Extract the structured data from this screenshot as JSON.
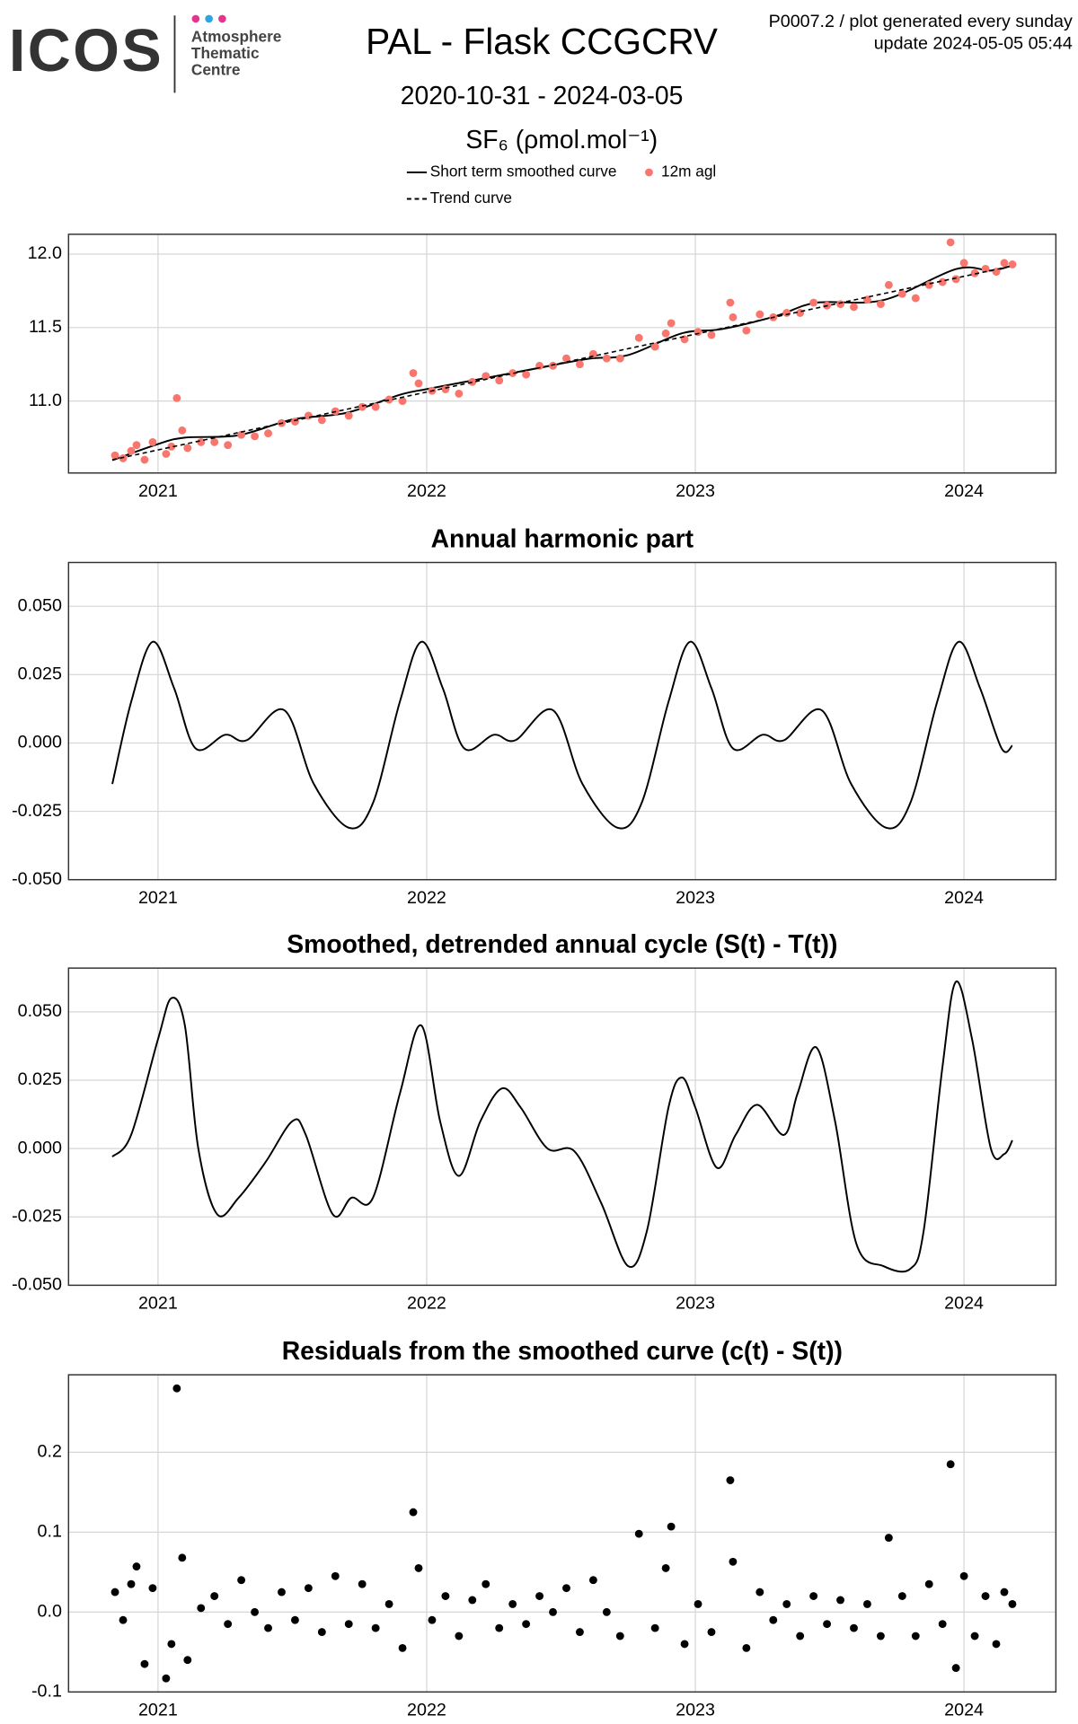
{
  "header": {
    "logo": "ICOS",
    "org": [
      "Atmosphere",
      "Thematic",
      "Centre"
    ],
    "title": "PAL - Flask CCGCRV",
    "date_range": "2020-10-31 - 2024-03-05",
    "unit": "SF₆ (ρmol.mol⁻¹)",
    "note": [
      "P0007.2 / plot generated every sunday",
      "update  2024-05-05 05:44"
    ]
  },
  "chart_data": [
    {
      "type": "line",
      "xlim": [
        2020.667,
        2024.342
      ],
      "xticks": [
        2021,
        2022,
        2023,
        2024
      ],
      "ylim": [
        10.51,
        12.135
      ],
      "yticks": [
        {
          "value": 11.0,
          "label": "11.0"
        },
        11.5,
        {
          "value": 12.0,
          "label": "12.0"
        }
      ],
      "grid": true,
      "series": [
        {
          "name": "Short term smoothed curve",
          "color": "#000000",
          "mark": "line",
          "x": [
            2020.83,
            2021.0,
            2021.1,
            2021.3,
            2021.5,
            2021.7,
            2021.9,
            2022.0,
            2022.2,
            2022.4,
            2022.6,
            2022.75,
            2022.95,
            2023.1,
            2023.3,
            2023.45,
            2023.7,
            2023.97,
            2024.1,
            2024.18
          ],
          "values": [
            10.597,
            10.707,
            10.751,
            10.767,
            10.874,
            10.919,
            11.042,
            11.081,
            11.15,
            11.219,
            11.287,
            11.313,
            11.461,
            11.49,
            11.578,
            11.669,
            11.687,
            11.898,
            11.888,
            11.923
          ]
        },
        {
          "name": "12m agl",
          "color": "#f8766d",
          "mark": "point",
          "x": [
            2020.84,
            2020.87,
            2020.9,
            2020.92,
            2020.95,
            2020.98,
            2021.03,
            2021.05,
            2021.07,
            2021.09,
            2021.11,
            2021.16,
            2021.21,
            2021.26,
            2021.31,
            2021.36,
            2021.41,
            2021.46,
            2021.51,
            2021.56,
            2021.61,
            2021.66,
            2021.71,
            2021.76,
            2021.81,
            2021.86,
            2021.91,
            2021.95,
            2021.97,
            2022.02,
            2022.07,
            2022.12,
            2022.17,
            2022.22,
            2022.27,
            2022.32,
            2022.37,
            2022.42,
            2022.47,
            2022.52,
            2022.57,
            2022.62,
            2022.67,
            2022.72,
            2022.79,
            2022.85,
            2022.89,
            2022.91,
            2022.96,
            2023.01,
            2023.06,
            2023.13,
            2023.14,
            2023.19,
            2023.24,
            2023.29,
            2023.34,
            2023.39,
            2023.44,
            2023.49,
            2023.54,
            2023.59,
            2023.64,
            2023.69,
            2023.72,
            2023.77,
            2023.82,
            2023.87,
            2023.92,
            2023.95,
            2023.97,
            2024.0,
            2024.04,
            2024.08,
            2024.12,
            2024.15,
            2024.18
          ],
          "values": [
            10.63,
            10.61,
            10.66,
            10.7,
            10.6,
            10.72,
            10.64,
            10.69,
            11.02,
            10.8,
            10.68,
            10.72,
            10.72,
            10.7,
            10.77,
            10.76,
            10.78,
            10.85,
            10.86,
            10.9,
            10.87,
            10.93,
            10.9,
            10.96,
            10.96,
            11.01,
            11.0,
            11.19,
            11.12,
            11.07,
            11.08,
            11.05,
            11.13,
            11.17,
            11.14,
            11.19,
            11.18,
            11.24,
            11.24,
            11.29,
            11.25,
            11.32,
            11.29,
            11.29,
            11.43,
            11.37,
            11.46,
            11.53,
            11.42,
            11.47,
            11.45,
            11.67,
            11.57,
            11.48,
            11.59,
            11.57,
            11.6,
            11.6,
            11.67,
            11.65,
            11.66,
            11.64,
            11.69,
            11.66,
            11.79,
            11.73,
            11.7,
            11.79,
            11.81,
            12.08,
            11.83,
            11.94,
            11.87,
            11.9,
            11.88,
            11.94,
            11.93
          ]
        },
        {
          "name": "Trend curve",
          "color": "#000000",
          "mark": "dashed",
          "x": [
            2020.83,
            2022.0,
            2023.0,
            2024.18
          ],
          "values": [
            10.6,
            11.061,
            11.455,
            11.92
          ]
        }
      ]
    },
    {
      "type": "line",
      "title": "Annual harmonic part",
      "xlim": [
        2020.667,
        2024.342
      ],
      "xticks": [
        2021,
        2022,
        2023,
        2024
      ],
      "ylim": [
        -0.05,
        0.066
      ],
      "yticks": [
        {
          "value": -0.05,
          "label": "-0.050"
        },
        {
          "value": -0.025,
          "label": "-0.025"
        },
        {
          "value": 0,
          "label": "0.000"
        },
        {
          "value": 0.025,
          "label": "0.025"
        },
        {
          "value": 0.05,
          "label": "0.050"
        }
      ],
      "grid": true,
      "series": [
        {
          "color": "#000000",
          "mark": "line",
          "x": [
            2020.83,
            2020.9,
            2020.98,
            2021.06,
            2021.14,
            2021.25,
            2021.33,
            2021.47,
            2021.58,
            2021.71,
            2021.8,
            2021.9,
            2021.98,
            2022.06,
            2022.14,
            2022.25,
            2022.33,
            2022.47,
            2022.58,
            2022.71,
            2022.8,
            2022.9,
            2022.98,
            2023.06,
            2023.14,
            2023.25,
            2023.33,
            2023.47,
            2023.58,
            2023.71,
            2023.8,
            2023.9,
            2023.98,
            2024.06,
            2024.14,
            2024.18
          ],
          "values": [
            -0.015,
            0.015,
            0.037,
            0.02,
            -0.002,
            0.003,
            0.001,
            0.012,
            -0.015,
            -0.031,
            -0.022,
            0.015,
            0.037,
            0.02,
            -0.002,
            0.003,
            0.001,
            0.012,
            -0.015,
            -0.031,
            -0.022,
            0.015,
            0.037,
            0.02,
            -0.002,
            0.003,
            0.001,
            0.012,
            -0.015,
            -0.031,
            -0.022,
            0.015,
            0.037,
            0.02,
            -0.002,
            -0.001
          ]
        }
      ]
    },
    {
      "type": "line",
      "title": "Smoothed, detrended annual cycle (S(t) - T(t))",
      "xlim": [
        2020.667,
        2024.342
      ],
      "xticks": [
        2021,
        2022,
        2023,
        2024
      ],
      "ylim": [
        -0.05,
        0.066
      ],
      "yticks": [
        {
          "value": -0.05,
          "label": "-0.050"
        },
        {
          "value": -0.025,
          "label": "-0.025"
        },
        {
          "value": 0,
          "label": "0.000"
        },
        {
          "value": 0.025,
          "label": "0.025"
        },
        {
          "value": 0.05,
          "label": "0.050"
        }
      ],
      "grid": true,
      "series": [
        {
          "color": "#000000",
          "mark": "line",
          "x": [
            2020.83,
            2020.9,
            2021.0,
            2021.05,
            2021.1,
            2021.15,
            2021.22,
            2021.3,
            2021.4,
            2021.5,
            2021.55,
            2021.65,
            2021.72,
            2021.8,
            2021.9,
            2021.98,
            2022.05,
            2022.12,
            2022.2,
            2022.28,
            2022.35,
            2022.45,
            2022.55,
            2022.65,
            2022.75,
            2022.82,
            2022.9,
            2022.95,
            2023.0,
            2023.08,
            2023.15,
            2023.23,
            2023.33,
            2023.38,
            2023.45,
            2023.52,
            2023.6,
            2023.7,
            2023.8,
            2023.85,
            2023.92,
            2023.97,
            2024.03,
            2024.1,
            2024.15,
            2024.18
          ],
          "values": [
            -0.003,
            0.005,
            0.04,
            0.055,
            0.045,
            0.0,
            -0.024,
            -0.018,
            -0.005,
            0.01,
            0.005,
            -0.024,
            -0.018,
            -0.018,
            0.02,
            0.045,
            0.01,
            -0.01,
            0.01,
            0.022,
            0.015,
            0.0,
            -0.001,
            -0.02,
            -0.043,
            -0.03,
            0.015,
            0.026,
            0.015,
            -0.007,
            0.005,
            0.016,
            0.005,
            0.02,
            0.037,
            0.01,
            -0.035,
            -0.043,
            -0.044,
            -0.03,
            0.03,
            0.061,
            0.04,
            0.0,
            -0.002,
            0.003
          ]
        }
      ]
    },
    {
      "type": "scatter",
      "title": "Residuals from the smoothed curve (c(t) - S(t))",
      "xlim": [
        2020.667,
        2024.342
      ],
      "xticks": [
        2021,
        2022,
        2023,
        2024
      ],
      "ylim": [
        -0.1,
        0.297
      ],
      "yticks": [
        -0.1,
        {
          "value": 0,
          "label": "0.0"
        },
        0.1,
        0.2
      ],
      "grid": true,
      "series": [
        {
          "color": "#000000",
          "mark": "point",
          "x": [
            2020.84,
            2020.87,
            2020.9,
            2020.92,
            2020.95,
            2020.98,
            2021.03,
            2021.05,
            2021.07,
            2021.09,
            2021.11,
            2021.16,
            2021.21,
            2021.26,
            2021.31,
            2021.36,
            2021.41,
            2021.46,
            2021.51,
            2021.56,
            2021.61,
            2021.66,
            2021.71,
            2021.76,
            2021.81,
            2021.86,
            2021.91,
            2021.95,
            2021.97,
            2022.02,
            2022.07,
            2022.12,
            2022.17,
            2022.22,
            2022.27,
            2022.32,
            2022.37,
            2022.42,
            2022.47,
            2022.52,
            2022.57,
            2022.62,
            2022.67,
            2022.72,
            2022.79,
            2022.85,
            2022.89,
            2022.91,
            2022.96,
            2023.01,
            2023.06,
            2023.13,
            2023.14,
            2023.19,
            2023.24,
            2023.29,
            2023.34,
            2023.39,
            2023.44,
            2023.49,
            2023.54,
            2023.59,
            2023.64,
            2023.69,
            2023.72,
            2023.77,
            2023.82,
            2023.87,
            2023.92,
            2023.95,
            2023.97,
            2024.0,
            2024.04,
            2024.08,
            2024.12,
            2024.15,
            2024.18
          ],
          "values": [
            0.025,
            -0.01,
            0.035,
            0.057,
            -0.065,
            0.03,
            -0.083,
            -0.04,
            0.28,
            0.068,
            -0.06,
            0.005,
            0.02,
            -0.015,
            0.04,
            0.0,
            -0.02,
            0.025,
            -0.01,
            0.03,
            -0.025,
            0.045,
            -0.015,
            0.035,
            -0.02,
            0.01,
            -0.045,
            0.125,
            0.055,
            -0.01,
            0.02,
            -0.03,
            0.015,
            0.035,
            -0.02,
            0.01,
            -0.015,
            0.02,
            0.0,
            0.03,
            -0.025,
            0.04,
            0.0,
            -0.03,
            0.098,
            -0.02,
            0.055,
            0.107,
            -0.04,
            0.01,
            -0.025,
            0.165,
            0.063,
            -0.045,
            0.025,
            -0.01,
            0.01,
            -0.03,
            0.02,
            -0.015,
            0.015,
            -0.02,
            0.01,
            -0.03,
            0.093,
            0.02,
            -0.03,
            0.035,
            -0.015,
            0.185,
            -0.07,
            0.045,
            -0.03,
            0.02,
            -0.04,
            0.025,
            0.01
          ]
        }
      ]
    }
  ]
}
